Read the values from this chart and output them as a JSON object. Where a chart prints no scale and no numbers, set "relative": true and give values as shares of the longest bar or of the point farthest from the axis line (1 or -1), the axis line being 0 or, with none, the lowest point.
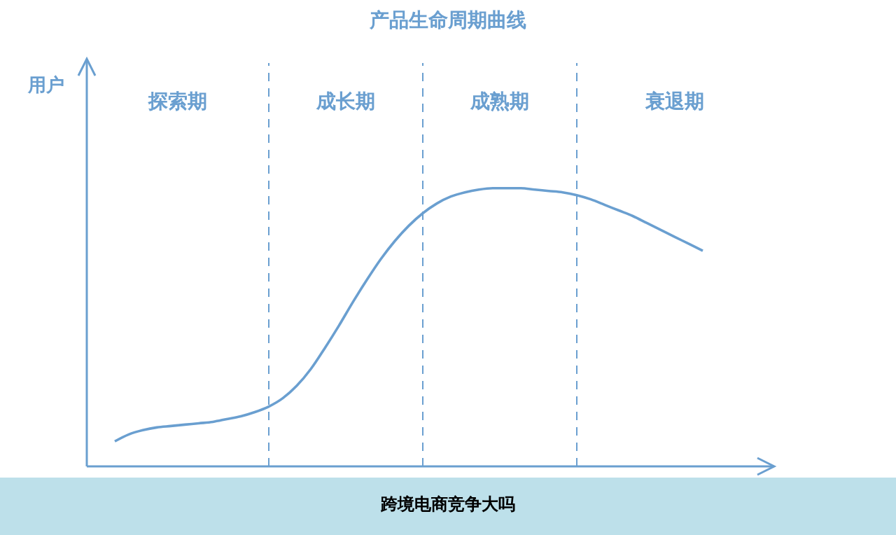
{
  "chart_data": {
    "type": "line",
    "title": "产品生命周期曲线",
    "relative": true,
    "grid": "x",
    "color": "#6a9fd0",
    "categories": [
      null,
      null,
      null,
      null,
      null,
      null,
      null,
      null,
      null,
      null,
      null,
      null,
      null,
      null,
      null,
      null,
      null,
      null,
      null,
      null,
      null,
      null,
      null,
      null,
      null,
      null,
      null,
      null,
      null,
      null,
      null,
      null,
      null,
      null,
      null,
      null,
      null,
      null,
      null,
      null,
      null,
      null,
      null,
      null,
      null,
      null,
      null,
      null,
      null,
      null
    ],
    "values": [
      null,
      null,
      0.09,
      0.115,
      0.13,
      0.14,
      0.145,
      0.15,
      0.155,
      0.16,
      0.17,
      0.18,
      0.195,
      0.215,
      0.245,
      0.29,
      0.35,
      0.425,
      0.505,
      0.59,
      0.67,
      0.745,
      0.81,
      0.865,
      0.91,
      0.945,
      0.97,
      0.985,
      0.995,
      1,
      1,
      1,
      0.995,
      0.99,
      0.985,
      0.975,
      0.96,
      0.94,
      0.92,
      0.9,
      0.875,
      0.85,
      0.825,
      0.8,
      0.775,
      null,
      null,
      null,
      null,
      null
    ],
    "annotations": [
      "探索期",
      "成长期",
      "成熟期",
      "衰退期",
      "跨境电商竞争大吗",
      "用户"
    ],
    "marker": "none",
    "line_style": "solid"
  }
}
